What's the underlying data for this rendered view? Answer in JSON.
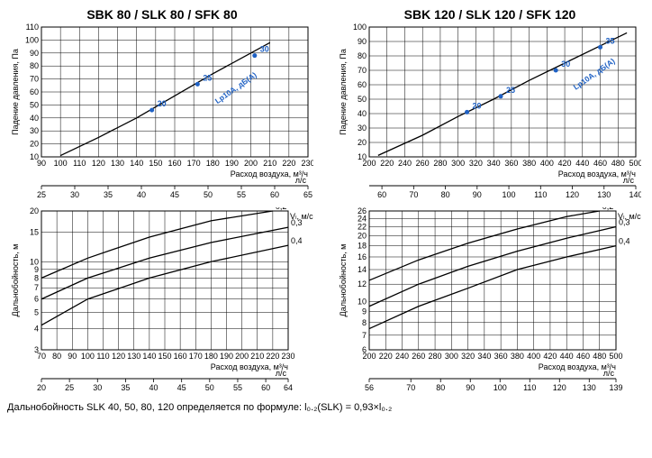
{
  "charts": {
    "top_left": {
      "title": "SBK 80 / SLK 80 / SFK 80",
      "type": "line",
      "ylabel": "Падение давления, Па",
      "xlabel1": "Расход воздуха, м³/ч",
      "xlabel2": "л/с",
      "xlim": [
        90,
        230
      ],
      "ylim": [
        10,
        110
      ],
      "xticks": [
        90,
        100,
        110,
        120,
        130,
        140,
        150,
        160,
        170,
        180,
        190,
        200,
        210,
        220,
        230
      ],
      "yticks": [
        10,
        20,
        30,
        40,
        50,
        60,
        70,
        80,
        90,
        100,
        110
      ],
      "x2lim": [
        25,
        65
      ],
      "x2ticks": [
        25,
        30,
        35,
        40,
        45,
        50,
        55,
        60,
        65
      ],
      "line": {
        "points": [
          [
            100,
            11
          ],
          [
            120,
            25
          ],
          [
            140,
            40
          ],
          [
            160,
            57
          ],
          [
            180,
            74
          ],
          [
            200,
            90
          ],
          [
            210,
            98
          ]
        ],
        "color": "#000000",
        "width": 1.3
      },
      "markers": [
        {
          "x": 148,
          "y": 46,
          "label": "20"
        },
        {
          "x": 172,
          "y": 66,
          "label": "25"
        },
        {
          "x": 202,
          "y": 88,
          "label": "30"
        }
      ],
      "marker_color": "#1f61c4",
      "annotation": "Lp10A, дБ(A)",
      "background_color": "#ffffff",
      "grid_color": "#000000",
      "tick_fontsize": 9,
      "label_fontsize": 9
    },
    "top_right": {
      "title": "SBK 120 / SLK 120 / SFK 120",
      "type": "line",
      "ylabel": "Падение давления, Па",
      "xlabel1": "Расход воздуха, м³/ч",
      "xlabel2": "л/с",
      "xlim": [
        200,
        500
      ],
      "ylim": [
        10,
        100
      ],
      "xticks": [
        200,
        220,
        240,
        260,
        280,
        300,
        320,
        340,
        360,
        380,
        400,
        420,
        440,
        460,
        480,
        500
      ],
      "yticks": [
        10,
        20,
        30,
        40,
        50,
        60,
        70,
        80,
        90,
        100
      ],
      "x2lim": [
        56,
        140
      ],
      "x2ticks": [
        60,
        70,
        80,
        90,
        100,
        110,
        120,
        130,
        140
      ],
      "line": {
        "points": [
          [
            210,
            11
          ],
          [
            260,
            25
          ],
          [
            300,
            38
          ],
          [
            340,
            50
          ],
          [
            380,
            63
          ],
          [
            420,
            75
          ],
          [
            460,
            87
          ],
          [
            490,
            96
          ]
        ],
        "color": "#000000",
        "width": 1.3
      },
      "markers": [
        {
          "x": 310,
          "y": 41,
          "label": "20"
        },
        {
          "x": 348,
          "y": 52,
          "label": "25"
        },
        {
          "x": 410,
          "y": 70,
          "label": "30"
        },
        {
          "x": 460,
          "y": 86,
          "label": "35"
        }
      ],
      "marker_color": "#1f61c4",
      "annotation": "Lp10A, дБ(A)",
      "background_color": "#ffffff",
      "grid_color": "#000000",
      "tick_fontsize": 9,
      "label_fontsize": 9
    },
    "bottom_left": {
      "type": "line-log",
      "ylabel": "Дальнобойность, м",
      "xlabel1": "Расход воздуха, м³/ч",
      "xlabel2": "л/с",
      "xlim": [
        70,
        230
      ],
      "xticks": [
        70,
        80,
        90,
        100,
        110,
        120,
        130,
        140,
        150,
        160,
        170,
        180,
        190,
        200,
        210,
        220,
        230
      ],
      "yticks": [
        3,
        4,
        5,
        6,
        7,
        8,
        9,
        10,
        15,
        20
      ],
      "x2lim": [
        20,
        64
      ],
      "x2ticks": [
        20,
        25,
        30,
        35,
        40,
        45,
        50,
        55,
        60,
        64
      ],
      "series": [
        {
          "label": "0,2",
          "points": [
            [
              70,
              8.0
            ],
            [
              100,
              10.5
            ],
            [
              140,
              14.0
            ],
            [
              180,
              17.5
            ],
            [
              220,
              20.0
            ]
          ]
        },
        {
          "label": "0,3",
          "points": [
            [
              70,
              6.0
            ],
            [
              100,
              8.0
            ],
            [
              140,
              10.5
            ],
            [
              180,
              13.0
            ],
            [
              230,
              16.0
            ]
          ]
        },
        {
          "label": "0,4",
          "points": [
            [
              70,
              4.2
            ],
            [
              100,
              6.0
            ],
            [
              140,
              8.0
            ],
            [
              180,
              10.0
            ],
            [
              230,
              12.5
            ]
          ]
        }
      ],
      "series_color": "#000000",
      "series_width": 1.3,
      "velocity_label": "Vₗ, м/с",
      "background_color": "#ffffff",
      "grid_color": "#000000",
      "tick_fontsize": 9,
      "label_fontsize": 9
    },
    "bottom_right": {
      "type": "line-log",
      "ylabel": "Дальнобойность, м",
      "xlabel1": "Расход воздуха, м³/ч",
      "xlabel2": "л/с",
      "xlim": [
        200,
        500
      ],
      "xticks": [
        200,
        220,
        240,
        260,
        280,
        300,
        320,
        340,
        360,
        380,
        400,
        420,
        440,
        460,
        480,
        500
      ],
      "yticks": [
        6,
        7,
        8,
        9,
        10,
        12,
        14,
        16,
        18,
        20,
        22,
        24,
        26
      ],
      "x2lim": [
        56,
        139
      ],
      "x2ticks": [
        56,
        70,
        80,
        90,
        100,
        110,
        120,
        130,
        139
      ],
      "series": [
        {
          "label": "0,2",
          "points": [
            [
              200,
              12.5
            ],
            [
              260,
              15.5
            ],
            [
              320,
              18.5
            ],
            [
              380,
              21.5
            ],
            [
              440,
              24.5
            ],
            [
              480,
              26.0
            ]
          ]
        },
        {
          "label": "0,3",
          "points": [
            [
              200,
              9.5
            ],
            [
              260,
              12.0
            ],
            [
              320,
              14.5
            ],
            [
              380,
              17.0
            ],
            [
              440,
              19.5
            ],
            [
              500,
              22.0
            ]
          ]
        },
        {
          "label": "0,4",
          "points": [
            [
              200,
              7.5
            ],
            [
              260,
              9.5
            ],
            [
              320,
              11.5
            ],
            [
              380,
              14.0
            ],
            [
              440,
              16.0
            ],
            [
              500,
              18.0
            ]
          ]
        }
      ],
      "series_color": "#000000",
      "series_width": 1.3,
      "velocity_label": "Vₗ, м/с",
      "background_color": "#ffffff",
      "grid_color": "#000000",
      "tick_fontsize": 9,
      "label_fontsize": 9
    }
  },
  "footer_text": "Дальнобойность SLK 40, 50, 80, 120 определяется по формуле: l₀.₂(SLK) = 0,93×l₀.₂"
}
